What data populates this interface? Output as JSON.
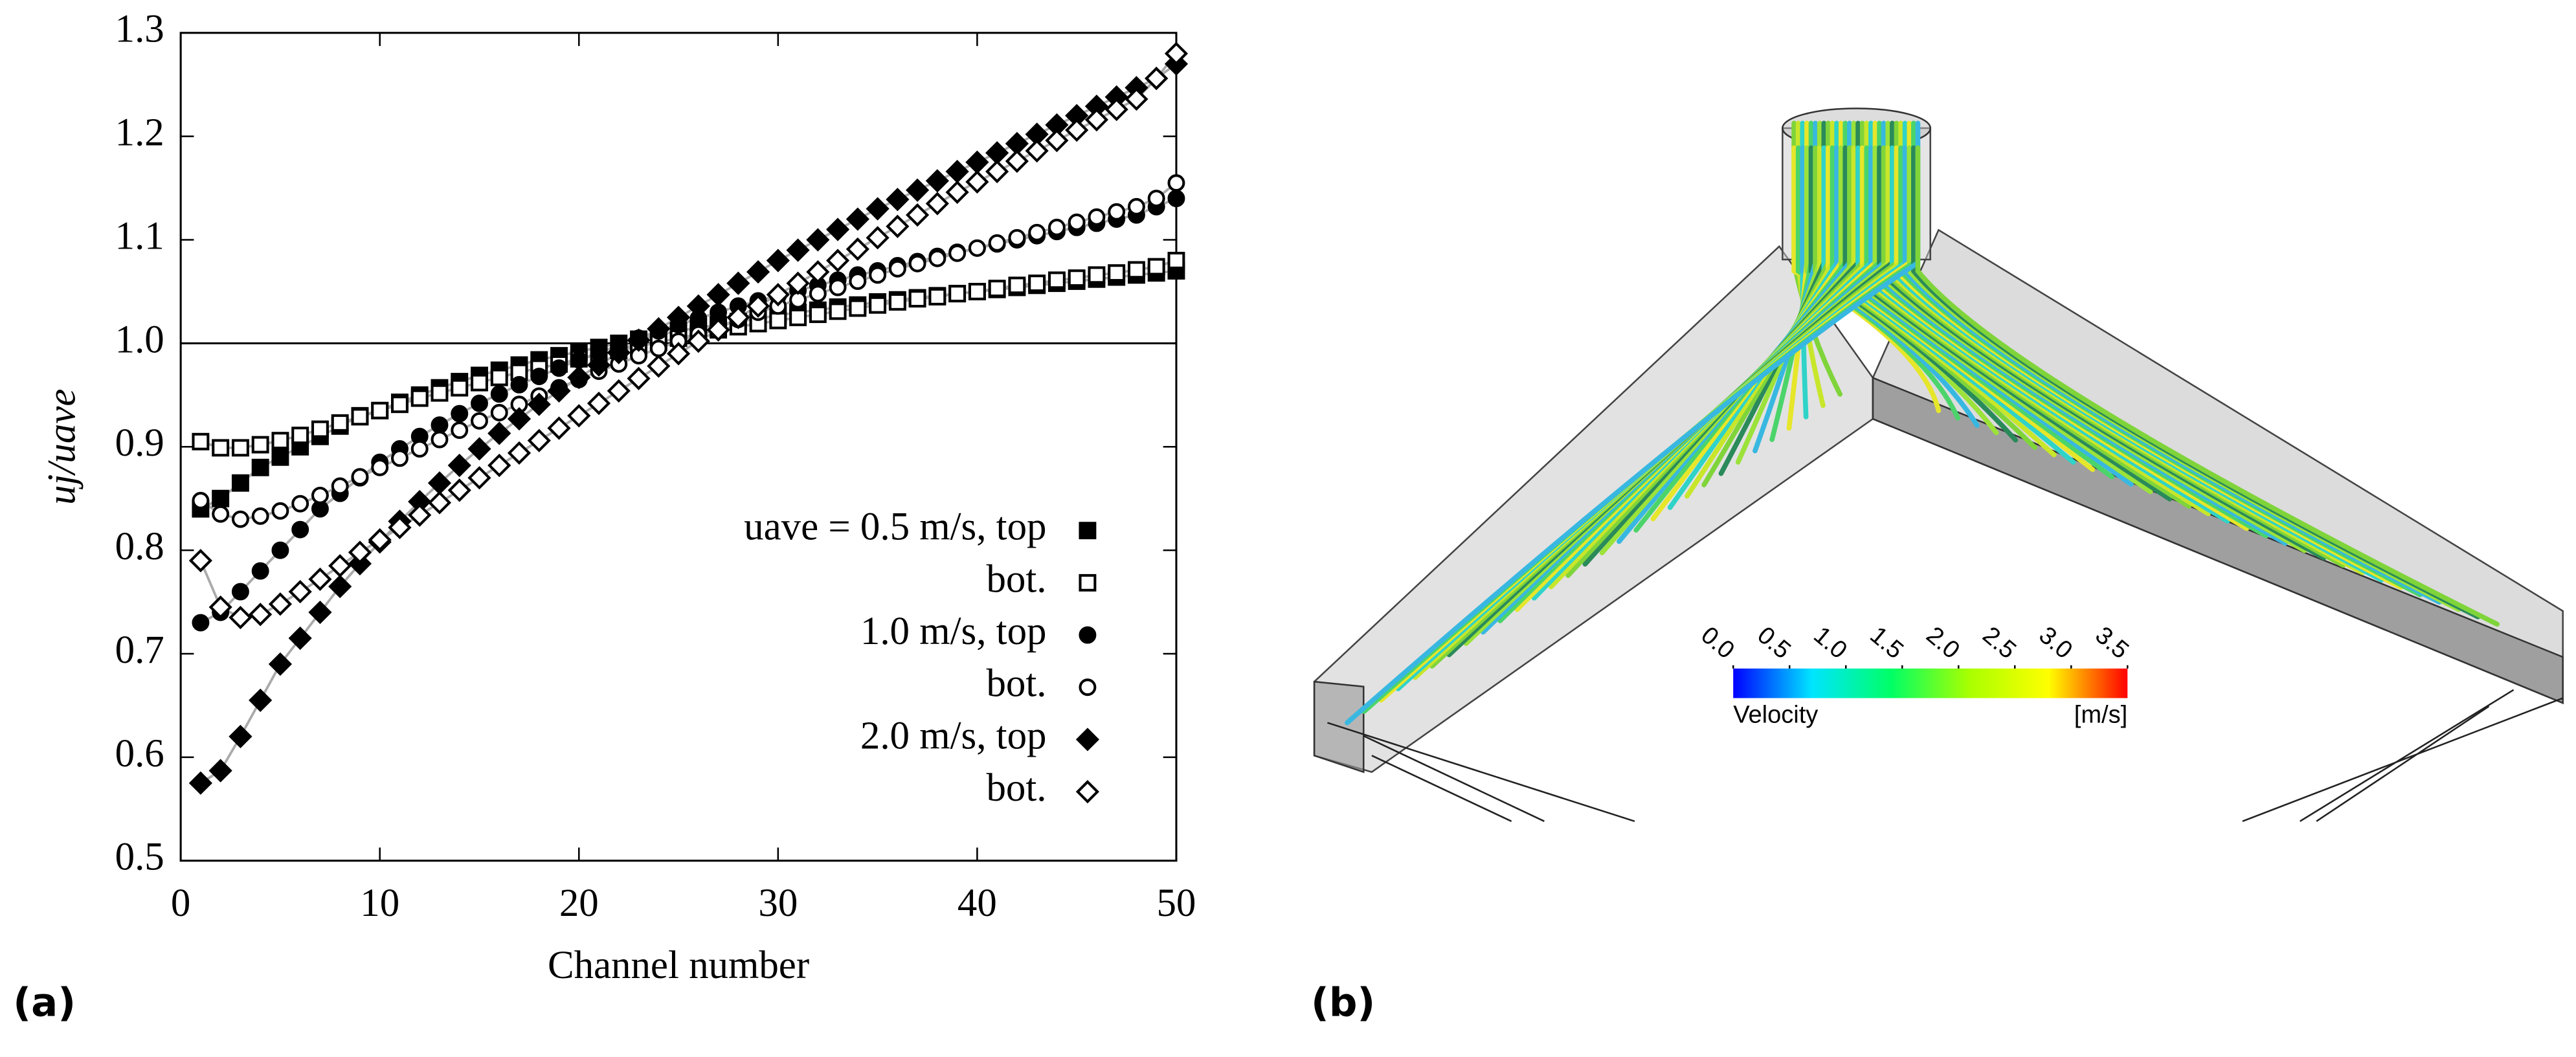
{
  "chart_data": [
    {
      "type": "scatter-line",
      "panel_label": "(a)",
      "x_label": "Channel number",
      "y_label": "uj/uave",
      "xlim": [
        0,
        50
      ],
      "ylim": [
        0.5,
        1.3
      ],
      "xticks": [
        0,
        10,
        20,
        30,
        40,
        50
      ],
      "yticks": [
        0.5,
        0.6,
        0.7,
        0.8,
        0.9,
        {
          "value": 1,
          "label": "1.0"
        },
        1.1,
        1.2,
        1.3
      ],
      "reference_line": 1,
      "legend": "lower right",
      "line_color": "#aaaaaa",
      "x": [
        1,
        2,
        3,
        4,
        5,
        6,
        7,
        8,
        9,
        10,
        11,
        12,
        13,
        14,
        15,
        16,
        17,
        18,
        19,
        20,
        21,
        22,
        23,
        24,
        25,
        26,
        27,
        28,
        29,
        30,
        31,
        32,
        33,
        34,
        35,
        36,
        37,
        38,
        39,
        40,
        41,
        42,
        43,
        44,
        45,
        46,
        47,
        48,
        49,
        50
      ],
      "series": [
        {
          "name": "uave = 0.5 m/s, top",
          "marker": "square",
          "filled": true,
          "color": "#000000",
          "values": [
            0.84,
            0.85,
            0.865,
            0.88,
            0.89,
            0.9,
            0.91,
            0.92,
            0.93,
            0.935,
            0.943,
            0.95,
            0.957,
            0.963,
            0.969,
            0.974,
            0.979,
            0.984,
            0.988,
            0.992,
            0.996,
            1.0,
            1.004,
            1.008,
            1.012,
            1.015,
            1.018,
            1.021,
            1.024,
            1.027,
            1.03,
            1.032,
            1.035,
            1.037,
            1.04,
            1.042,
            1.044,
            1.046,
            1.048,
            1.05,
            1.052,
            1.054,
            1.056,
            1.058,
            1.06,
            1.062,
            1.064,
            1.066,
            1.068,
            1.07
          ]
        },
        {
          "name": "bot.",
          "marker": "square",
          "filled": false,
          "color": "#000000",
          "values": [
            0.905,
            0.899,
            0.899,
            0.902,
            0.906,
            0.911,
            0.917,
            0.923,
            0.929,
            0.935,
            0.941,
            0.947,
            0.952,
            0.957,
            0.962,
            0.967,
            0.972,
            0.976,
            0.98,
            0.985,
            0.989,
            0.993,
            0.997,
            1.001,
            1.005,
            1.009,
            1.013,
            1.016,
            1.019,
            1.022,
            1.025,
            1.028,
            1.031,
            1.034,
            1.037,
            1.04,
            1.043,
            1.045,
            1.048,
            1.05,
            1.053,
            1.056,
            1.058,
            1.061,
            1.063,
            1.066,
            1.068,
            1.071,
            1.074,
            1.08
          ]
        },
        {
          "name": "1.0 m/s, top",
          "marker": "circle",
          "filled": true,
          "color": "#000000",
          "values": [
            0.73,
            0.74,
            0.76,
            0.78,
            0.8,
            0.82,
            0.84,
            0.855,
            0.87,
            0.885,
            0.898,
            0.91,
            0.921,
            0.932,
            0.942,
            0.951,
            0.96,
            0.968,
            0.976,
            0.984,
            0.991,
            0.998,
            1.005,
            1.012,
            1.018,
            1.024,
            1.03,
            1.036,
            1.041,
            1.046,
            1.051,
            1.056,
            1.061,
            1.066,
            1.07,
            1.075,
            1.079,
            1.084,
            1.088,
            1.092,
            1.096,
            1.1,
            1.104,
            1.108,
            1.112,
            1.116,
            1.12,
            1.124,
            1.132,
            1.14
          ]
        },
        {
          "name": "bot.",
          "marker": "circle",
          "filled": false,
          "color": "#000000",
          "values": [
            0.848,
            0.835,
            0.83,
            0.833,
            0.838,
            0.845,
            0.853,
            0.862,
            0.871,
            0.88,
            0.889,
            0.898,
            0.907,
            0.916,
            0.925,
            0.933,
            0.941,
            0.949,
            0.957,
            0.965,
            0.973,
            0.98,
            0.988,
            0.995,
            1.002,
            1.009,
            1.016,
            1.023,
            1.03,
            1.036,
            1.042,
            1.048,
            1.054,
            1.06,
            1.066,
            1.072,
            1.077,
            1.082,
            1.087,
            1.092,
            1.097,
            1.102,
            1.107,
            1.112,
            1.117,
            1.122,
            1.127,
            1.132,
            1.14,
            1.155
          ]
        },
        {
          "name": "2.0 m/s, top",
          "marker": "diamond",
          "filled": true,
          "color": "#000000",
          "values": [
            0.575,
            0.587,
            0.62,
            0.655,
            0.69,
            0.715,
            0.74,
            0.765,
            0.787,
            0.808,
            0.828,
            0.847,
            0.865,
            0.882,
            0.898,
            0.913,
            0.927,
            0.941,
            0.954,
            0.967,
            0.979,
            0.991,
            1.003,
            1.014,
            1.025,
            1.036,
            1.047,
            1.058,
            1.069,
            1.08,
            1.09,
            1.1,
            1.11,
            1.12,
            1.13,
            1.139,
            1.148,
            1.157,
            1.166,
            1.175,
            1.184,
            1.193,
            1.202,
            1.211,
            1.22,
            1.229,
            1.238,
            1.247,
            1.256,
            1.27
          ]
        },
        {
          "name": "bot.",
          "marker": "diamond",
          "filled": false,
          "color": "#000000",
          "values": [
            0.79,
            0.745,
            0.735,
            0.738,
            0.748,
            0.76,
            0.772,
            0.785,
            0.798,
            0.81,
            0.822,
            0.834,
            0.846,
            0.858,
            0.87,
            0.882,
            0.894,
            0.906,
            0.918,
            0.93,
            0.942,
            0.954,
            0.966,
            0.978,
            0.99,
            1.002,
            1.013,
            1.025,
            1.036,
            1.047,
            1.058,
            1.069,
            1.08,
            1.091,
            1.102,
            1.113,
            1.124,
            1.135,
            1.146,
            1.156,
            1.166,
            1.176,
            1.186,
            1.196,
            1.206,
            1.216,
            1.226,
            1.236,
            1.256,
            1.28
          ]
        }
      ]
    },
    {
      "type": "colorbar",
      "panel_label": "(b)",
      "label": "Velocity",
      "unit": "[m/s]",
      "lim": [
        0,
        3.5
      ],
      "ticks": [
        {
          "value": 0,
          "label": "0.0"
        },
        0.5,
        {
          "value": 1,
          "label": "1.0"
        },
        1.5,
        {
          "value": 2,
          "label": "2.0"
        },
        2.5,
        {
          "value": 3,
          "label": "3.0"
        },
        3.5
      ],
      "colors": [
        "#0000ff",
        "#00e5ff",
        "#00ff66",
        "#aaff00",
        "#ffff00",
        "#ff0000"
      ]
    }
  ]
}
